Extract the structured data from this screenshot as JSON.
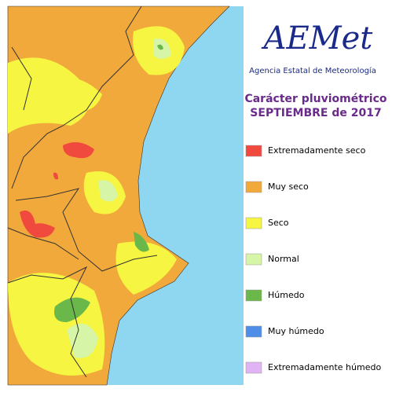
{
  "logo": {
    "text": "AEMet",
    "subtitle": "Agencia Estatal de Meteorología"
  },
  "title": "Carácter pluviométrico",
  "subtitle": "SEPTIEMBRE de 2017",
  "legend": [
    {
      "label": "Extremadamente seco",
      "color": "#f04a3e"
    },
    {
      "label": "Muy seco",
      "color": "#f2a93b"
    },
    {
      "label": "Seco",
      "color": "#f5f542"
    },
    {
      "label": "Normal",
      "color": "#d6f5a6"
    },
    {
      "label": "Húmedo",
      "color": "#6ab84a"
    },
    {
      "label": "Muy húmedo",
      "color": "#4f8ee8"
    },
    {
      "label": "Extremadamente húmedo",
      "color": "#e0b3f5"
    }
  ]
}
